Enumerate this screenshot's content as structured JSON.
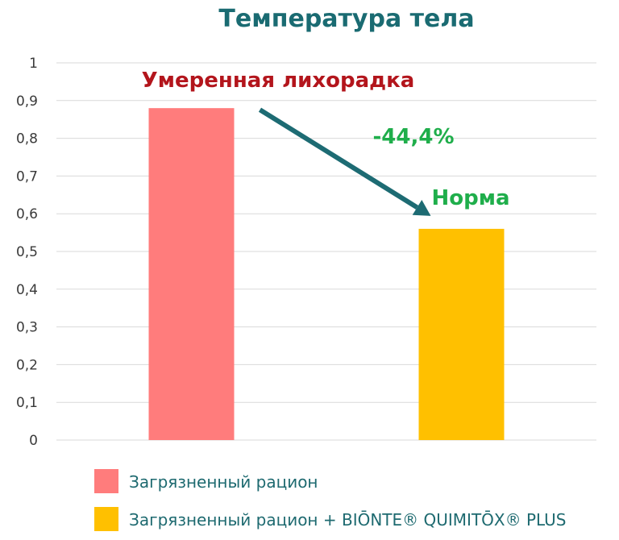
{
  "chart_data": {
    "type": "bar",
    "title": "Температура тела",
    "xlabel": "",
    "ylabel": "",
    "ylim": [
      0,
      1
    ],
    "yticks": [
      "0",
      "0,1",
      "0,2",
      "0,3",
      "0,4",
      "0,5",
      "0,6",
      "0,7",
      "0,8",
      "0,9",
      "1"
    ],
    "grid": true,
    "series": [
      {
        "name": "Загрязненный рацион",
        "values": [
          0.88
        ],
        "color": "#ff7c7c"
      },
      {
        "name": "Загрязненный рацион + BIŌNTE® QUIMITŌX® PLUS",
        "values": [
          0.56
        ],
        "color": "#ffc000"
      }
    ],
    "annotations": {
      "fever": "Умеренная лихорадка",
      "delta": "-44,4%",
      "norm": "Норма"
    },
    "arrow_color": "#1d6b73",
    "legend_position": "bottom-left"
  }
}
